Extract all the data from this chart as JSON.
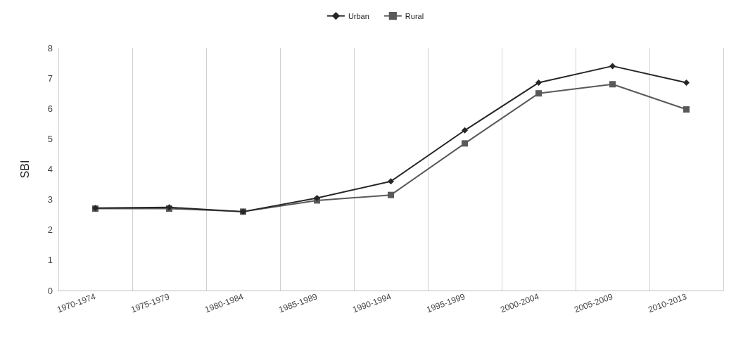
{
  "chart_data": {
    "type": "line",
    "ylabel": "SBI",
    "categories": [
      "1970-1974",
      "1975-1979",
      "1980-1984",
      "1985-1989",
      "1990-1994",
      "1995-1999",
      "2000-2004",
      "2005-2009",
      "2010-2013"
    ],
    "series": [
      {
        "name": "Urban",
        "color": "#262626",
        "marker": "diamond",
        "values": [
          2.72,
          2.74,
          2.6,
          3.05,
          3.6,
          5.28,
          6.85,
          7.4,
          6.85
        ]
      },
      {
        "name": "Rural",
        "color": "#595959",
        "marker": "square",
        "values": [
          2.7,
          2.7,
          2.6,
          2.97,
          3.15,
          4.85,
          6.5,
          6.8,
          5.97
        ]
      }
    ],
    "ylim": [
      0,
      8
    ],
    "yticks": [
      0,
      1,
      2,
      3,
      4,
      5,
      6,
      7,
      8
    ],
    "grid": "x",
    "legend": "top",
    "line_style": "solid"
  }
}
